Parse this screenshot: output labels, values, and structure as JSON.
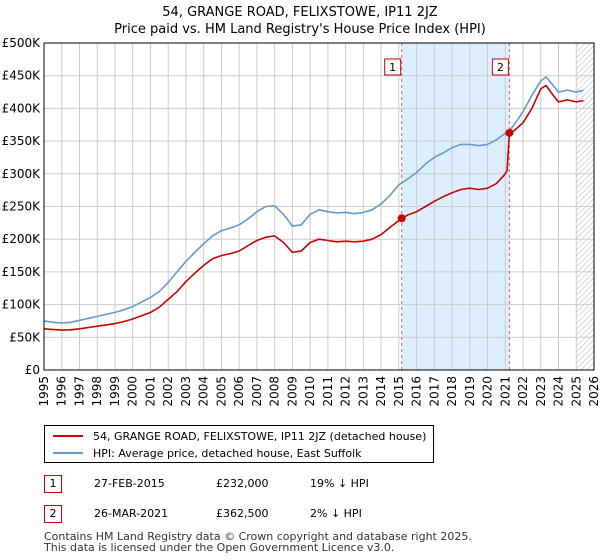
{
  "header": {
    "title_line1": "54, GRANGE ROAD, FELIXSTOWE, IP11 2JZ",
    "title_line2": "Price paid vs. HM Land Registry's House Price Index (HPI)"
  },
  "legend": {
    "property_label": "54, GRANGE ROAD, FELIXSTOWE, IP11 2JZ (detached house)",
    "hpi_label": "HPI: Average price, detached house, East Suffolk"
  },
  "sales": [
    {
      "num": "1",
      "date": "27-FEB-2015",
      "price": "£232,000",
      "hpi_delta": "19% ↓ HPI"
    },
    {
      "num": "2",
      "date": "26-MAR-2021",
      "price": "£362,500",
      "hpi_delta": "2% ↓ HPI"
    }
  ],
  "footer": {
    "line1": "Contains HM Land Registry data © Crown copyright and database right 2025.",
    "line2": "This data is licensed under the Open Government Licence v3.0."
  },
  "colors": {
    "property": "#cc0000",
    "hpi": "#6699cc",
    "shade": "#ddeeff",
    "grid": "#cccccc"
  },
  "chart_data": {
    "type": "line",
    "title": "54, GRANGE ROAD, FELIXSTOWE, IP11 2JZ\nPrice paid vs. HM Land Registry's House Price Index (HPI)",
    "xlabel": "",
    "ylabel": "",
    "xlim": [
      1995,
      2026
    ],
    "ylim": [
      0,
      500000
    ],
    "x_ticks": [
      1995,
      1996,
      1997,
      1998,
      1999,
      2000,
      2001,
      2002,
      2003,
      2004,
      2005,
      2006,
      2007,
      2008,
      2009,
      2010,
      2011,
      2012,
      2013,
      2014,
      2015,
      2016,
      2017,
      2018,
      2019,
      2020,
      2021,
      2022,
      2023,
      2024,
      2025,
      2026
    ],
    "y_ticks": [
      {
        "value": 0,
        "label": "£0"
      },
      {
        "value": 50000,
        "label": "£50K"
      },
      {
        "value": 100000,
        "label": "£100K"
      },
      {
        "value": 150000,
        "label": "£150K"
      },
      {
        "value": 200000,
        "label": "£200K"
      },
      {
        "value": 250000,
        "label": "£250K"
      },
      {
        "value": 300000,
        "label": "£300K"
      },
      {
        "value": 350000,
        "label": "£350K"
      },
      {
        "value": 400000,
        "label": "£400K"
      },
      {
        "value": 450000,
        "label": "£450K"
      },
      {
        "value": 500000,
        "label": "£500K"
      }
    ],
    "shaded_period": [
      2015.16,
      2021.23
    ],
    "hatched_from": 2025.0,
    "series": [
      {
        "name": "54, GRANGE ROAD, FELIXSTOWE, IP11 2JZ (detached house)",
        "color": "#cc0000",
        "points": [
          [
            1995.0,
            63000
          ],
          [
            1995.5,
            62000
          ],
          [
            1996.0,
            61000
          ],
          [
            1996.5,
            61500
          ],
          [
            1997.0,
            63000
          ],
          [
            1997.5,
            65000
          ],
          [
            1998.0,
            67000
          ],
          [
            1998.5,
            69000
          ],
          [
            1999.0,
            71000
          ],
          [
            1999.5,
            74000
          ],
          [
            2000.0,
            78000
          ],
          [
            2000.5,
            83000
          ],
          [
            2001.0,
            88000
          ],
          [
            2001.5,
            96000
          ],
          [
            2002.0,
            108000
          ],
          [
            2002.5,
            120000
          ],
          [
            2003.0,
            135000
          ],
          [
            2003.5,
            148000
          ],
          [
            2004.0,
            160000
          ],
          [
            2004.5,
            170000
          ],
          [
            2005.0,
            175000
          ],
          [
            2005.5,
            178000
          ],
          [
            2006.0,
            182000
          ],
          [
            2006.5,
            190000
          ],
          [
            2007.0,
            198000
          ],
          [
            2007.5,
            203000
          ],
          [
            2008.0,
            205000
          ],
          [
            2008.5,
            195000
          ],
          [
            2009.0,
            180000
          ],
          [
            2009.5,
            182000
          ],
          [
            2010.0,
            195000
          ],
          [
            2010.5,
            200000
          ],
          [
            2011.0,
            198000
          ],
          [
            2011.5,
            196000
          ],
          [
            2012.0,
            197000
          ],
          [
            2012.5,
            196000
          ],
          [
            2013.0,
            197000
          ],
          [
            2013.5,
            200000
          ],
          [
            2014.0,
            207000
          ],
          [
            2014.5,
            218000
          ],
          [
            2015.16,
            232000
          ],
          [
            2015.5,
            237000
          ],
          [
            2016.0,
            242000
          ],
          [
            2016.5,
            250000
          ],
          [
            2017.0,
            258000
          ],
          [
            2017.5,
            265000
          ],
          [
            2018.0,
            271000
          ],
          [
            2018.5,
            276000
          ],
          [
            2019.0,
            278000
          ],
          [
            2019.5,
            276000
          ],
          [
            2020.0,
            278000
          ],
          [
            2020.5,
            285000
          ],
          [
            2021.0,
            300000
          ],
          [
            2021.1,
            305000
          ],
          [
            2021.23,
            362500
          ],
          [
            2021.5,
            366000
          ],
          [
            2022.0,
            378000
          ],
          [
            2022.5,
            400000
          ],
          [
            2023.0,
            430000
          ],
          [
            2023.3,
            435000
          ],
          [
            2023.7,
            420000
          ],
          [
            2024.0,
            410000
          ],
          [
            2024.5,
            413000
          ],
          [
            2025.0,
            410000
          ],
          [
            2025.4,
            412000
          ]
        ]
      },
      {
        "name": "HPI: Average price, detached house, East Suffolk",
        "color": "#6699cc",
        "points": [
          [
            1995.0,
            75000
          ],
          [
            1995.5,
            73000
          ],
          [
            1996.0,
            72000
          ],
          [
            1996.5,
            73000
          ],
          [
            1997.0,
            76000
          ],
          [
            1997.5,
            79000
          ],
          [
            1998.0,
            82000
          ],
          [
            1998.5,
            85000
          ],
          [
            1999.0,
            88000
          ],
          [
            1999.5,
            92000
          ],
          [
            2000.0,
            97000
          ],
          [
            2000.5,
            104000
          ],
          [
            2001.0,
            111000
          ],
          [
            2001.5,
            120000
          ],
          [
            2002.0,
            134000
          ],
          [
            2002.5,
            150000
          ],
          [
            2003.0,
            166000
          ],
          [
            2003.5,
            180000
          ],
          [
            2004.0,
            193000
          ],
          [
            2004.5,
            205000
          ],
          [
            2005.0,
            213000
          ],
          [
            2005.5,
            217000
          ],
          [
            2006.0,
            222000
          ],
          [
            2006.5,
            231000
          ],
          [
            2007.0,
            242000
          ],
          [
            2007.5,
            250000
          ],
          [
            2008.0,
            251000
          ],
          [
            2008.5,
            238000
          ],
          [
            2009.0,
            220000
          ],
          [
            2009.5,
            222000
          ],
          [
            2010.0,
            238000
          ],
          [
            2010.5,
            245000
          ],
          [
            2011.0,
            242000
          ],
          [
            2011.5,
            240000
          ],
          [
            2012.0,
            241000
          ],
          [
            2012.5,
            239000
          ],
          [
            2013.0,
            241000
          ],
          [
            2013.5,
            245000
          ],
          [
            2014.0,
            254000
          ],
          [
            2014.5,
            267000
          ],
          [
            2015.0,
            283000
          ],
          [
            2015.5,
            292000
          ],
          [
            2016.0,
            302000
          ],
          [
            2016.5,
            315000
          ],
          [
            2017.0,
            325000
          ],
          [
            2017.5,
            332000
          ],
          [
            2018.0,
            340000
          ],
          [
            2018.5,
            345000
          ],
          [
            2019.0,
            345000
          ],
          [
            2019.5,
            343000
          ],
          [
            2020.0,
            345000
          ],
          [
            2020.5,
            352000
          ],
          [
            2021.0,
            362000
          ],
          [
            2021.3,
            368000
          ],
          [
            2021.5,
            375000
          ],
          [
            2022.0,
            395000
          ],
          [
            2022.5,
            420000
          ],
          [
            2023.0,
            442000
          ],
          [
            2023.3,
            448000
          ],
          [
            2023.7,
            435000
          ],
          [
            2024.0,
            425000
          ],
          [
            2024.5,
            428000
          ],
          [
            2025.0,
            425000
          ],
          [
            2025.4,
            428000
          ]
        ]
      }
    ],
    "sale_markers": [
      {
        "label": "1",
        "x": 2015.16,
        "y": 232000
      },
      {
        "label": "2",
        "x": 2021.23,
        "y": 362500
      }
    ]
  }
}
